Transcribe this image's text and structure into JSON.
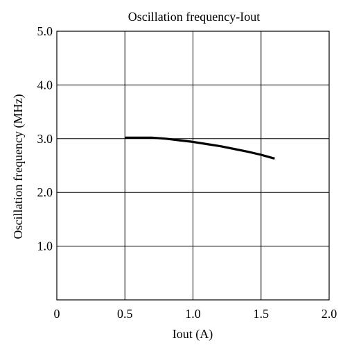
{
  "chart_data": {
    "type": "line",
    "title": "Oscillation frequency-Iout",
    "xlabel": "Iout (A)",
    "ylabel": "Oscillation frequency (MHz)",
    "xlim": [
      0,
      2.0
    ],
    "ylim": [
      0,
      5.0
    ],
    "xticks": [
      "0",
      "0.5",
      "1.0",
      "1.5",
      "2.0"
    ],
    "yticks": [
      "1.0",
      "2.0",
      "3.0",
      "4.0",
      "5.0"
    ],
    "grid": true,
    "series": [
      {
        "x": [
          0.5,
          0.6,
          0.7,
          0.8,
          0.9,
          1.0,
          1.1,
          1.2,
          1.3,
          1.4,
          1.5,
          1.6
        ],
        "y": [
          3.02,
          3.02,
          3.02,
          3.0,
          2.97,
          2.94,
          2.9,
          2.86,
          2.81,
          2.76,
          2.7,
          2.63
        ],
        "color": "#000000"
      }
    ]
  }
}
